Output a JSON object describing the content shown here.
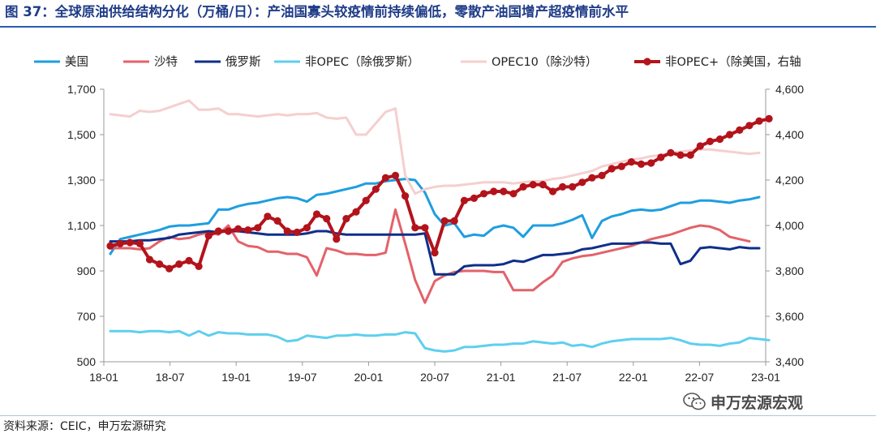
{
  "header": {
    "title": "图 37：全球原油供给结构分化（万桶/日）：产油国寡头较疫情前持续偏低，零散产油国增产超疫情前水平"
  },
  "footer": {
    "source": "资料来源：CEIC，申万宏源研究",
    "watermark": "申万宏源宏观"
  },
  "colors": {
    "title": "#1f3c88",
    "us": "#1e9ee0",
    "saudi": "#e3626a",
    "russia": "#0e2f8a",
    "nonopec_ex_russia": "#5fcfee",
    "opec10_ex_saudi": "#f5cfcf",
    "nonopec_plus_ex_us": "#b3131b"
  },
  "chart_data": {
    "type": "line",
    "x_tick_labels": [
      "18-01",
      "18-07",
      "19-01",
      "19-07",
      "20-01",
      "20-07",
      "21-01",
      "21-07",
      "22-01",
      "22-07",
      "23-01"
    ],
    "y_left_ticks": [
      "500",
      "700",
      "900",
      "1,100",
      "1,300",
      "1,500",
      "1,700"
    ],
    "y_right_ticks": [
      "3,400",
      "3,600",
      "3,800",
      "4,000",
      "4,200",
      "4,400",
      "4,600"
    ],
    "y_left_range": [
      500,
      1700
    ],
    "y_right_range": [
      3400,
      4600
    ],
    "x_range": [
      "2018-01",
      "2023-01"
    ],
    "grid": false,
    "legend_position": "top",
    "series": [
      {
        "name": "美国",
        "key": "us",
        "axis": "left",
        "marker": false,
        "width": 3,
        "values": [
          975,
          1040,
          1050,
          1060,
          1070,
          1080,
          1095,
          1100,
          1100,
          1105,
          1110,
          1170,
          1170,
          1185,
          1195,
          1200,
          1210,
          1220,
          1225,
          1220,
          1205,
          1235,
          1240,
          1250,
          1260,
          1270,
          1285,
          1285,
          1295,
          1300,
          1305,
          1300,
          1245,
          1150,
          1100,
          1110,
          1050,
          1060,
          1055,
          1090,
          1100,
          1090,
          1050,
          1100,
          1100,
          1100,
          1110,
          1125,
          1145,
          1045,
          1120,
          1140,
          1150,
          1165,
          1170,
          1165,
          1170,
          1185,
          1200,
          1200,
          1210,
          1210,
          1205,
          1200,
          1210,
          1215,
          1225
        ]
      },
      {
        "name": "沙特",
        "key": "saudi",
        "axis": "left",
        "marker": false,
        "width": 3,
        "values": [
          1000,
          1000,
          1000,
          995,
          1000,
          1030,
          1050,
          1040,
          1045,
          1060,
          1070,
          1060,
          1100,
          1030,
          1010,
          1005,
          985,
          985,
          975,
          975,
          960,
          880,
          1000,
          990,
          975,
          975,
          970,
          970,
          980,
          1170,
          1020,
          860,
          760,
          855,
          880,
          895,
          900,
          900,
          900,
          895,
          895,
          815,
          815,
          815,
          850,
          880,
          940,
          955,
          965,
          970,
          980,
          990,
          1000,
          1010,
          1025,
          1040,
          1050,
          1060,
          1075,
          1090,
          1100,
          1095,
          1080,
          1050,
          1040,
          1030
        ]
      },
      {
        "name": "俄罗斯",
        "key": "russia",
        "axis": "left",
        "marker": false,
        "width": 3,
        "values": [
          1030,
          1030,
          1030,
          1035,
          1035,
          1040,
          1045,
          1060,
          1065,
          1070,
          1075,
          1070,
          1075,
          1075,
          1070,
          1065,
          1060,
          1060,
          1060,
          1060,
          1065,
          1075,
          1075,
          1065,
          1060,
          1060,
          1060,
          1060,
          1060,
          1060,
          1060,
          1060,
          1065,
          885,
          885,
          885,
          920,
          925,
          925,
          925,
          930,
          945,
          940,
          955,
          970,
          970,
          975,
          980,
          995,
          1000,
          1010,
          1020,
          1020,
          1020,
          1025,
          1025,
          1020,
          1020,
          930,
          945,
          1000,
          1005,
          1000,
          995,
          1005,
          1000,
          1000
        ]
      },
      {
        "name": "非OPEC（除俄罗斯）",
        "key": "nonopec_ex_russia",
        "axis": "left",
        "marker": false,
        "width": 3,
        "values": [
          635,
          635,
          635,
          630,
          635,
          635,
          630,
          635,
          615,
          635,
          615,
          630,
          625,
          625,
          620,
          620,
          620,
          610,
          590,
          595,
          615,
          610,
          605,
          615,
          615,
          620,
          615,
          615,
          620,
          620,
          630,
          625,
          560,
          550,
          545,
          550,
          565,
          565,
          570,
          575,
          575,
          580,
          580,
          590,
          585,
          580,
          585,
          570,
          575,
          565,
          580,
          590,
          595,
          600,
          600,
          600,
          600,
          605,
          595,
          580,
          575,
          575,
          570,
          580,
          585,
          605,
          600,
          595
        ]
      },
      {
        "name": "OPEC10（除沙特）",
        "key": "opec10_ex_saudi",
        "axis": "left",
        "marker": false,
        "width": 3,
        "values": [
          1590,
          1585,
          1580,
          1605,
          1600,
          1605,
          1620,
          1635,
          1650,
          1610,
          1610,
          1615,
          1590,
          1590,
          1585,
          1580,
          1585,
          1590,
          1585,
          1590,
          1590,
          1595,
          1575,
          1570,
          1575,
          1500,
          1500,
          1550,
          1600,
          1615,
          1320,
          1240,
          1260,
          1270,
          1275,
          1275,
          1280,
          1285,
          1290,
          1290,
          1290,
          1285,
          1290,
          1295,
          1295,
          1305,
          1310,
          1320,
          1330,
          1340,
          1360,
          1370,
          1380,
          1390,
          1395,
          1405,
          1410,
          1420,
          1425,
          1430,
          1435,
          1435,
          1430,
          1425,
          1420,
          1415,
          1420
        ]
      },
      {
        "name": "非OPEC+（除美国，右轴",
        "key": "nonopec_plus_ex_us",
        "axis": "right",
        "marker": true,
        "width": 4,
        "values": [
          3910,
          3920,
          3925,
          3920,
          3850,
          3830,
          3810,
          3830,
          3845,
          3820,
          3955,
          3975,
          3975,
          3985,
          3980,
          3990,
          4040,
          4020,
          3975,
          3970,
          3990,
          4050,
          4030,
          3940,
          4030,
          4060,
          4110,
          4160,
          4210,
          4220,
          4130,
          3990,
          3990,
          3880,
          4020,
          4020,
          4110,
          4120,
          4140,
          4150,
          4150,
          4140,
          4170,
          4180,
          4180,
          4150,
          4170,
          4170,
          4190,
          4210,
          4220,
          4250,
          4260,
          4280,
          4270,
          4275,
          4300,
          4320,
          4310,
          4310,
          4350,
          4370,
          4380,
          4400,
          4420,
          4440,
          4460,
          4470
        ]
      }
    ]
  }
}
